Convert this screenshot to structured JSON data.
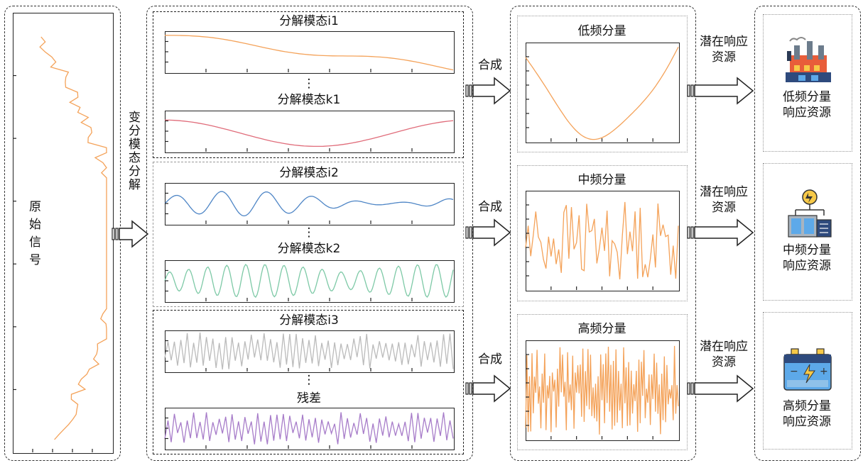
{
  "original_signal": {
    "label": "原始信号"
  },
  "vmd": {
    "label": "变分模态分解"
  },
  "modes": {
    "i1": "分解模态i1",
    "k1": "分解模态k1",
    "i2": "分解模态i2",
    "k2": "分解模态k2",
    "i3": "分解模态i3",
    "residual": "残差",
    "ellipsis": "⋮"
  },
  "synth": {
    "label": "合成"
  },
  "components": {
    "low": "低频分量",
    "mid": "中频分量",
    "high": "高频分量"
  },
  "potential": {
    "line1": "潜在响应",
    "line2": "资源"
  },
  "resources": {
    "low": {
      "line1": "低频分量",
      "line2": "响应资源",
      "icon": "factory-icon"
    },
    "mid": {
      "line1": "中频分量",
      "line2": "响应资源",
      "icon": "power-cabinet-icon"
    },
    "high": {
      "line1": "高频分量",
      "line2": "响应资源",
      "icon": "battery-icon"
    }
  },
  "colors": {
    "orange": "#F4A259",
    "red": "#E06C7A",
    "blue": "#4F86C6",
    "green": "#7DC9A6",
    "gray": "#BBBBBB",
    "purple": "#A77CC9"
  }
}
